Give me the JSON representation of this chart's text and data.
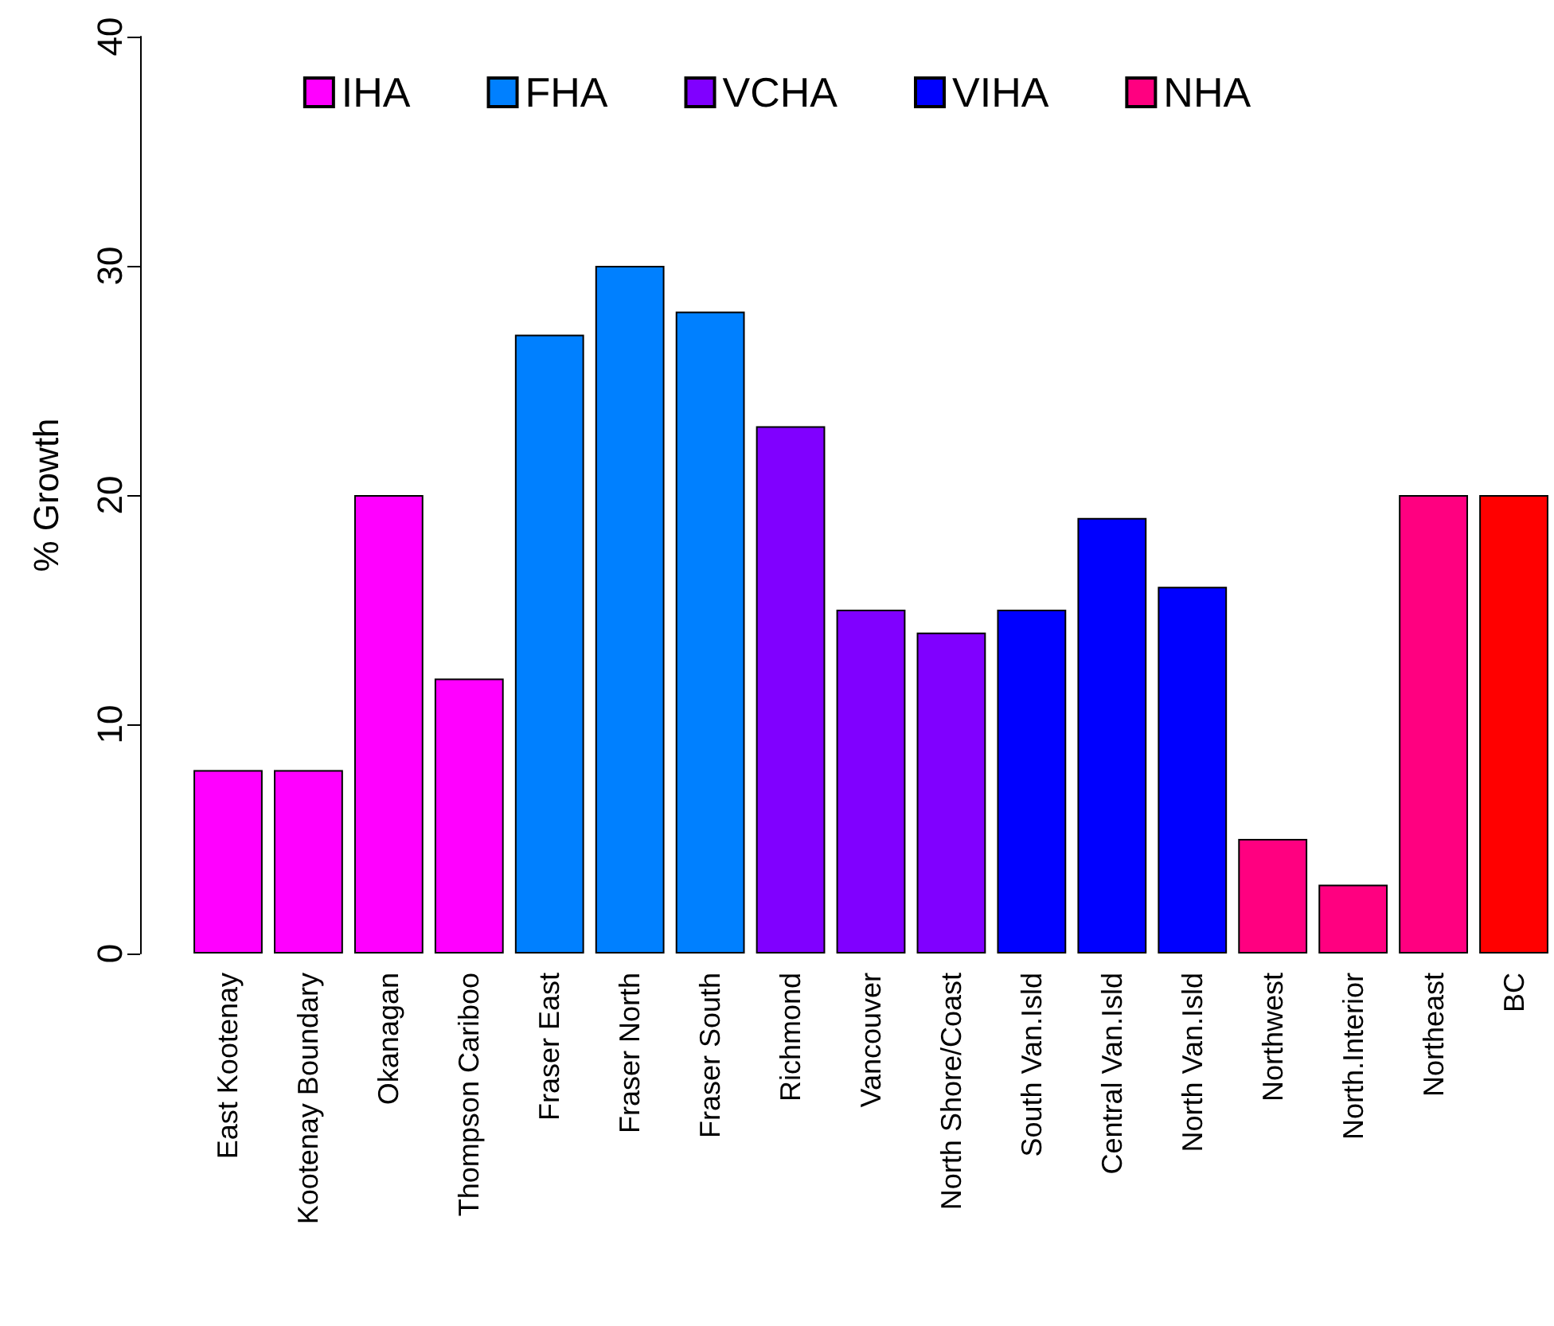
{
  "chart_data": {
    "type": "bar",
    "ylabel": "% Growth",
    "categories": [
      "East Kootenay",
      "Kootenay Boundary",
      "Okanagan",
      "Thompson Cariboo",
      "Fraser East",
      "Fraser North",
      "Fraser South",
      "Richmond",
      "Vancouver",
      "North Shore/Coast",
      "South Van.Isld",
      "Central Van.Isld",
      "North Van.Isld",
      "Northwest",
      "North.Interior",
      "Northeast",
      "BC"
    ],
    "series": [
      {
        "name": "IHA",
        "color": "#ff00ff",
        "values": [
          8,
          8,
          20,
          12,
          null,
          null,
          null,
          null,
          null,
          null,
          null,
          null,
          null,
          null,
          null,
          null,
          null
        ]
      },
      {
        "name": "FHA",
        "color": "#0080ff",
        "values": [
          null,
          null,
          null,
          null,
          27,
          30,
          28,
          null,
          null,
          null,
          null,
          null,
          null,
          null,
          null,
          null,
          null
        ]
      },
      {
        "name": "VCHA",
        "color": "#8000ff",
        "values": [
          null,
          null,
          null,
          null,
          null,
          null,
          null,
          23,
          15,
          14,
          null,
          null,
          null,
          null,
          null,
          null,
          null
        ]
      },
      {
        "name": "VIHA",
        "color": "#0000ff",
        "values": [
          null,
          null,
          null,
          null,
          null,
          null,
          null,
          null,
          null,
          null,
          15,
          19,
          16,
          null,
          null,
          null,
          null
        ]
      },
      {
        "name": "NHA",
        "color": "#ff0080",
        "values": [
          null,
          null,
          null,
          null,
          null,
          null,
          null,
          null,
          null,
          null,
          null,
          null,
          null,
          5,
          3,
          20,
          null
        ]
      },
      {
        "color": "#ff0000",
        "values": [
          null,
          null,
          null,
          null,
          null,
          null,
          null,
          null,
          null,
          null,
          null,
          null,
          null,
          null,
          null,
          null,
          20
        ]
      }
    ],
    "ylim": [
      0,
      40
    ],
    "yticks": [
      0,
      10,
      20,
      30,
      40
    ],
    "legend": "top"
  }
}
